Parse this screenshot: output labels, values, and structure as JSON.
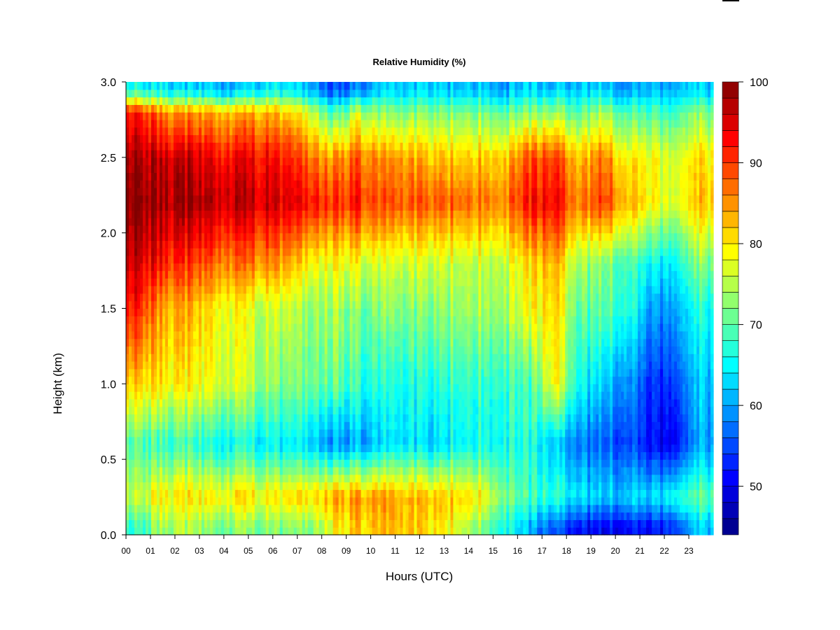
{
  "chart_data": {
    "type": "heatmap",
    "title": "Relative Humidity (%)",
    "xlabel": "Hours (UTC)",
    "ylabel": "Height (km)",
    "xlim": [
      0,
      24
    ],
    "ylim": [
      0,
      3
    ],
    "x_ticks": [
      "00",
      "01",
      "02",
      "03",
      "04",
      "05",
      "06",
      "07",
      "08",
      "09",
      "10",
      "11",
      "12",
      "13",
      "14",
      "15",
      "16",
      "17",
      "18",
      "19",
      "20",
      "21",
      "22",
      "23"
    ],
    "y_ticks": [
      "0.0",
      "0.5",
      "1.0",
      "1.5",
      "2.0",
      "2.5",
      "3.0"
    ],
    "x_tick_values": [
      0,
      1,
      2,
      3,
      4,
      5,
      6,
      7,
      8,
      9,
      10,
      11,
      12,
      13,
      14,
      15,
      16,
      17,
      18,
      19,
      20,
      21,
      22,
      23
    ],
    "y_tick_values": [
      0,
      0.5,
      1,
      1.5,
      2,
      2.5,
      3
    ],
    "colorbar": {
      "range": [
        44,
        100
      ],
      "tick_values": [
        50,
        60,
        70,
        80,
        90,
        100
      ],
      "tick_labels": [
        "50",
        "60",
        "70",
        "80",
        "90",
        "100"
      ],
      "levels": 28
    },
    "heights_km": [
      0.05,
      0.25,
      0.6,
      1.0,
      1.5,
      1.8,
      2.2,
      2.5,
      2.8,
      2.95
    ],
    "rows_rh": [
      [
        68,
        74,
        74,
        72,
        72,
        72,
        72,
        73,
        78,
        82,
        82,
        82,
        80,
        78,
        72,
        66,
        60,
        56,
        52,
        50,
        52,
        50,
        56,
        62
      ],
      [
        76,
        80,
        80,
        80,
        80,
        80,
        80,
        82,
        84,
        85,
        84,
        83,
        82,
        82,
        80,
        72,
        68,
        68,
        64,
        62,
        64,
        62,
        68,
        70
      ],
      [
        70,
        68,
        68,
        66,
        65,
        65,
        64,
        64,
        58,
        60,
        62,
        64,
        62,
        65,
        66,
        66,
        66,
        62,
        58,
        56,
        56,
        50,
        52,
        60
      ],
      [
        82,
        80,
        79,
        78,
        76,
        74,
        72,
        72,
        70,
        68,
        66,
        66,
        66,
        68,
        68,
        68,
        68,
        80,
        66,
        62,
        60,
        52,
        56,
        62
      ],
      [
        92,
        84,
        83,
        80,
        78,
        76,
        76,
        74,
        74,
        72,
        72,
        72,
        72,
        74,
        74,
        74,
        78,
        82,
        70,
        70,
        68,
        58,
        62,
        66
      ],
      [
        96,
        92,
        90,
        88,
        86,
        86,
        84,
        80,
        78,
        78,
        76,
        76,
        76,
        76,
        76,
        76,
        80,
        84,
        74,
        72,
        70,
        64,
        66,
        72
      ],
      [
        100,
        98,
        98,
        97,
        96,
        96,
        95,
        94,
        90,
        92,
        88,
        88,
        88,
        88,
        87,
        86,
        92,
        94,
        86,
        90,
        84,
        78,
        78,
        82
      ],
      [
        98,
        96,
        96,
        94,
        93,
        93,
        92,
        88,
        84,
        88,
        84,
        84,
        82,
        82,
        82,
        82,
        88,
        90,
        82,
        86,
        80,
        78,
        78,
        80
      ],
      [
        92,
        86,
        84,
        84,
        82,
        84,
        82,
        78,
        68,
        76,
        72,
        72,
        72,
        72,
        72,
        70,
        72,
        74,
        70,
        74,
        70,
        68,
        70,
        72
      ],
      [
        66,
        64,
        62,
        62,
        60,
        64,
        64,
        62,
        54,
        58,
        62,
        62,
        62,
        62,
        62,
        60,
        62,
        62,
        62,
        62,
        60,
        60,
        62,
        62
      ]
    ]
  }
}
